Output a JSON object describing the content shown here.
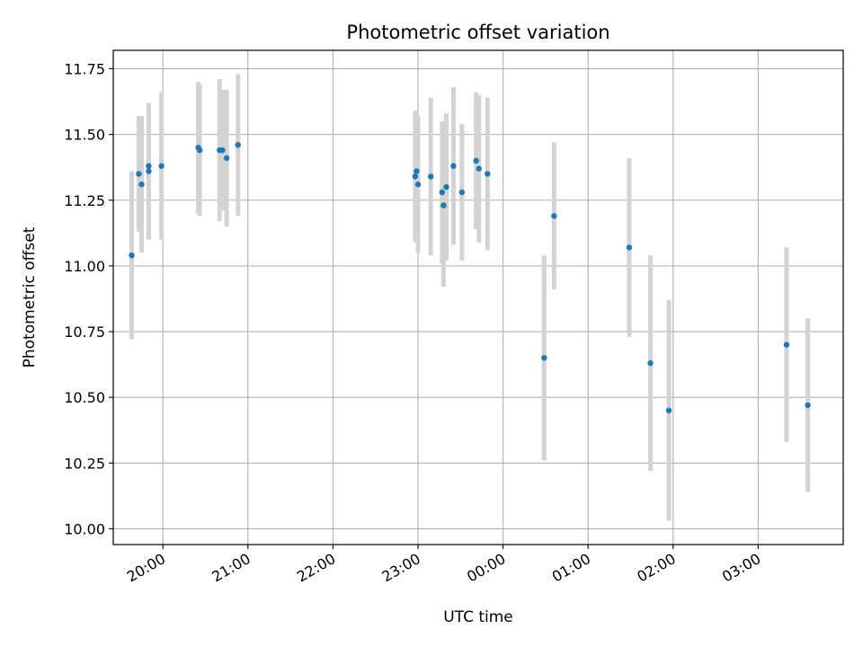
{
  "chart_data": {
    "type": "scatter",
    "title": "Photometric offset variation",
    "xlabel": "UTC time",
    "ylabel": "Photometric offset",
    "x_axis": {
      "kind": "time",
      "range": [
        "2000-01-01T19:25",
        "2000-01-02T04:00"
      ],
      "ticks": [
        {
          "label": "20:00",
          "time": "2000-01-01T20:00"
        },
        {
          "label": "21:00",
          "time": "2000-01-01T21:00"
        },
        {
          "label": "22:00",
          "time": "2000-01-01T22:00"
        },
        {
          "label": "23:00",
          "time": "2000-01-01T23:00"
        },
        {
          "label": "00:00",
          "time": "2000-01-02T00:00"
        },
        {
          "label": "01:00",
          "time": "2000-01-02T01:00"
        },
        {
          "label": "02:00",
          "time": "2000-01-02T02:00"
        },
        {
          "label": "03:00",
          "time": "2000-01-02T03:00"
        }
      ]
    },
    "y_axis": {
      "range": [
        9.94,
        11.82
      ],
      "ticks": [
        "10.00",
        "10.25",
        "10.50",
        "10.75",
        "11.00",
        "11.25",
        "11.50",
        "11.75"
      ]
    },
    "grid": true,
    "point_color": "#1f77b4",
    "errorbar_color": "#d3d3d3",
    "points": [
      {
        "t": "2000-01-01T19:38",
        "y": 11.04,
        "err": 0.32
      },
      {
        "t": "2000-01-01T19:43",
        "y": 11.35,
        "err": 0.22
      },
      {
        "t": "2000-01-01T19:45",
        "y": 11.31,
        "err": 0.26
      },
      {
        "t": "2000-01-01T19:50",
        "y": 11.38,
        "err": 0.24
      },
      {
        "t": "2000-01-01T19:50",
        "y": 11.36,
        "err": 0.26
      },
      {
        "t": "2000-01-01T19:59",
        "y": 11.38,
        "err": 0.28
      },
      {
        "t": "2000-01-01T20:25",
        "y": 11.45,
        "err": 0.25
      },
      {
        "t": "2000-01-01T20:26",
        "y": 11.44,
        "err": 0.25
      },
      {
        "t": "2000-01-01T20:40",
        "y": 11.44,
        "err": 0.27
      },
      {
        "t": "2000-01-01T20:42",
        "y": 11.44,
        "err": 0.23
      },
      {
        "t": "2000-01-01T20:45",
        "y": 11.41,
        "err": 0.26
      },
      {
        "t": "2000-01-01T20:53",
        "y": 11.46,
        "err": 0.27
      },
      {
        "t": "2000-01-01T22:58",
        "y": 11.34,
        "err": 0.25
      },
      {
        "t": "2000-01-01T22:59",
        "y": 11.36,
        "err": 0.23
      },
      {
        "t": "2000-01-01T23:00",
        "y": 11.31,
        "err": 0.26
      },
      {
        "t": "2000-01-01T23:09",
        "y": 11.34,
        "err": 0.3
      },
      {
        "t": "2000-01-01T23:17",
        "y": 11.28,
        "err": 0.27
      },
      {
        "t": "2000-01-01T23:18",
        "y": 11.23,
        "err": 0.31
      },
      {
        "t": "2000-01-01T23:20",
        "y": 11.3,
        "err": 0.28
      },
      {
        "t": "2000-01-01T23:25",
        "y": 11.38,
        "err": 0.3
      },
      {
        "t": "2000-01-01T23:31",
        "y": 11.28,
        "err": 0.26
      },
      {
        "t": "2000-01-01T23:41",
        "y": 11.4,
        "err": 0.26
      },
      {
        "t": "2000-01-01T23:43",
        "y": 11.37,
        "err": 0.28
      },
      {
        "t": "2000-01-01T23:49",
        "y": 11.35,
        "err": 0.29
      },
      {
        "t": "2000-01-02T00:29",
        "y": 10.65,
        "err": 0.39
      },
      {
        "t": "2000-01-02T00:36",
        "y": 11.19,
        "err": 0.28
      },
      {
        "t": "2000-01-02T01:29",
        "y": 11.07,
        "err": 0.34
      },
      {
        "t": "2000-01-02T01:44",
        "y": 10.63,
        "err": 0.41
      },
      {
        "t": "2000-01-02T01:57",
        "y": 10.45,
        "err": 0.42
      },
      {
        "t": "2000-01-02T03:20",
        "y": 10.7,
        "err": 0.37
      },
      {
        "t": "2000-01-02T03:35",
        "y": 10.47,
        "err": 0.33
      }
    ]
  }
}
